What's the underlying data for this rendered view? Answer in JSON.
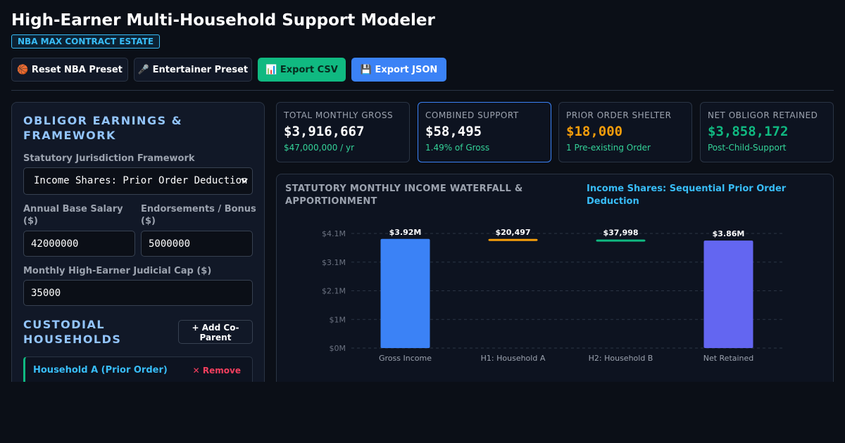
{
  "header": {
    "title": "High-Earner Multi-Household Support Modeler",
    "badge": "NBA MAX CONTRACT ESTATE"
  },
  "buttons": [
    "🏀 Reset NBA Preset",
    "🎤 Entertainer Preset",
    "📊 Export CSV",
    "💾 Export JSON"
  ],
  "form": {
    "section_title": "OBLIGOR EARNINGS & FRAMEWORK",
    "jurisdiction_label": "Statutory Jurisdiction Framework",
    "jurisdiction_value": "Income Shares: Prior Order Deduction",
    "salary_label": "Annual Base Salary ($)",
    "salary_value": 42000000,
    "bonus_label": "Endorsements / Bonus ($)",
    "bonus_value": 5000000,
    "cap_label": "Monthly High-Earner Judicial Cap ($)",
    "cap_value": 35000,
    "households_title": "CUSTODIAL HOUSEHOLDS",
    "add_button": "+ Add Co-Parent",
    "household_name": "Household A (Prior Order)",
    "remove_button": "✕ Remove"
  },
  "stats": [
    {
      "label": "TOTAL MONTHLY GROSS",
      "value": "$3,916,667",
      "sub": "$47,000,000 / yr"
    },
    {
      "label": "COMBINED SUPPORT",
      "value": "$58,495",
      "sub": "1.49% of Gross"
    },
    {
      "label": "PRIOR ORDER SHELTER",
      "value": "$18,000",
      "sub": "1 Pre-existing Order"
    },
    {
      "label": "NET OBLIGOR RETAINED",
      "value": "$3,858,172",
      "sub": "Post-Child-Support"
    }
  ],
  "chart_data": {
    "type": "waterfall",
    "title": "STATUTORY MONTHLY INCOME WATERFALL & APPORTIONMENT",
    "subtitle": "Income Shares: Sequential Prior Order Deduction",
    "categories": [
      "Gross Income",
      "H1: Household A",
      "H2: Household B",
      "Net Retained"
    ],
    "values": [
      3916667,
      20497,
      37998,
      3858172
    ],
    "value_labels": [
      "$3.92M",
      "$20,497",
      "$37,998",
      "$3.86M"
    ],
    "colors": [
      "#3b82f6",
      "#f59e0b",
      "#10b981",
      "#6366f1"
    ],
    "ylim": [
      0,
      4112500
    ],
    "yticks": [
      {
        "value": 0,
        "label": "$0M"
      },
      {
        "value": 1028125,
        "label": "$1M"
      },
      {
        "value": 2056250,
        "label": "$2.1M"
      },
      {
        "value": 3084375,
        "label": "$3.1M"
      },
      {
        "value": 4112500,
        "label": "$4.1M"
      }
    ],
    "grid": true
  }
}
